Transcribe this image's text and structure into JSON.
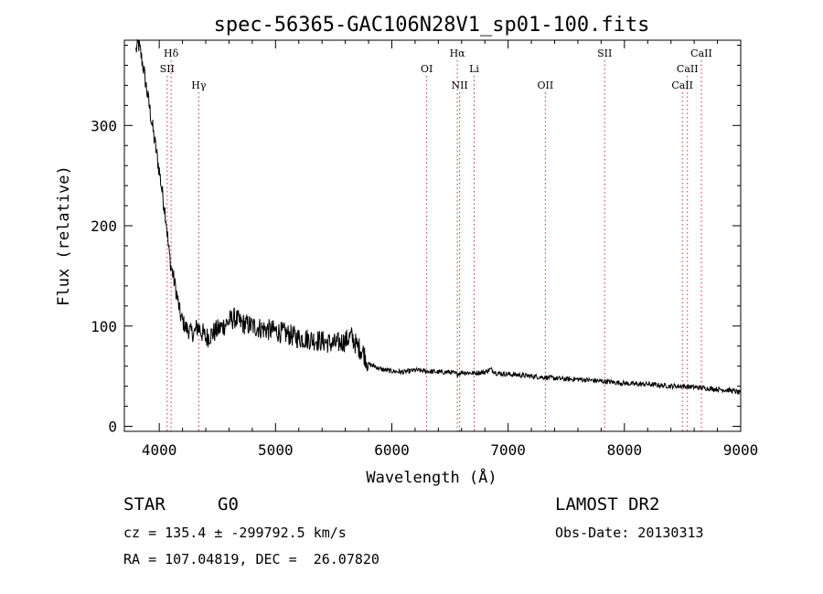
{
  "chart_data": {
    "type": "line",
    "title": "spec-56365-GAC106N28V1_sp01-100.fits",
    "xlabel": "Wavelength (Å)",
    "ylabel": "Flux (relative)",
    "xlim": [
      3700,
      9000
    ],
    "ylim": [
      -5,
      385
    ],
    "xticks": [
      4000,
      5000,
      6000,
      7000,
      8000,
      9000
    ],
    "xtick_labels": [
      "4000",
      "5000",
      "6000",
      "7000",
      "8000",
      "9000"
    ],
    "yticks": [
      0,
      100,
      200,
      300
    ],
    "ytick_labels": [
      "0",
      "100",
      "200",
      "300"
    ],
    "grid": false,
    "series": [
      {
        "x": [
          3800,
          3820,
          3840,
          3860,
          3880,
          3900,
          3920,
          3940,
          3960,
          3980,
          4000,
          4020,
          4040,
          4060,
          4080,
          4100,
          4120,
          4140,
          4160,
          4180,
          4200,
          4230,
          4260,
          4300,
          4330,
          4360,
          4400,
          4450,
          4500,
          4550,
          4600,
          4650,
          4700,
          4800,
          4900,
          5000,
          5100,
          5200,
          5300,
          5400,
          5500,
          5600,
          5650,
          5700,
          5750,
          5800,
          5850,
          5900,
          6000,
          6100,
          6200,
          6300,
          6400,
          6500,
          6563,
          6600,
          6700,
          6800,
          6850,
          6900,
          7000,
          7100,
          7200,
          7300,
          7400,
          7500,
          7600,
          7700,
          7800,
          7900,
          8000,
          8100,
          8200,
          8300,
          8400,
          8500,
          8600,
          8700,
          8800,
          8900,
          8950,
          9000
        ],
        "y": [
          375,
          382,
          372,
          360,
          345,
          330,
          315,
          300,
          285,
          270,
          255,
          238,
          222,
          205,
          178,
          160,
          150,
          138,
          125,
          112,
          105,
          98,
          95,
          92,
          100,
          95,
          88,
          92,
          96,
          100,
          105,
          108,
          103,
          100,
          97,
          95,
          92,
          88,
          87,
          85,
          82,
          85,
          90,
          80,
          75,
          62,
          60,
          57,
          55,
          54,
          56,
          55,
          54,
          54,
          52,
          54,
          53,
          54,
          57,
          53,
          52,
          51,
          50,
          49,
          48,
          47,
          47,
          46,
          45,
          44,
          43,
          42,
          42,
          41,
          40,
          40,
          39,
          38,
          37,
          36,
          35,
          33
        ]
      }
    ],
    "lines": [
      {
        "label": "Hδ",
        "x": 4102,
        "row": 0
      },
      {
        "label": "SII",
        "x": 4068,
        "row": 1
      },
      {
        "label": "Hγ",
        "x": 4340,
        "row": 2
      },
      {
        "label": "OI",
        "x": 6300,
        "row": 1
      },
      {
        "label": "Hα",
        "x": 6563,
        "row": 0
      },
      {
        "label": "NII",
        "x": 6583,
        "row": 2
      },
      {
        "label": "Li",
        "x": 6708,
        "row": 1
      },
      {
        "label": "OII",
        "x": 7320,
        "row": 2
      },
      {
        "label": "SII",
        "x": 7830,
        "row": 0
      },
      {
        "label": "CaII",
        "x": 8662,
        "row": 0
      },
      {
        "label": "CaII",
        "x": 8542,
        "row": 1
      },
      {
        "label": "CaII",
        "x": 8498,
        "row": 2
      }
    ]
  },
  "info": {
    "object_class": "STAR",
    "subclass": "G0",
    "survey": "LAMOST DR2",
    "redshift_line": "cz = 135.4 ± -299792.5 km/s",
    "obs_date": "Obs-Date: 20130313",
    "coords": "RA = 107.04819, DEC =  26.07820"
  }
}
